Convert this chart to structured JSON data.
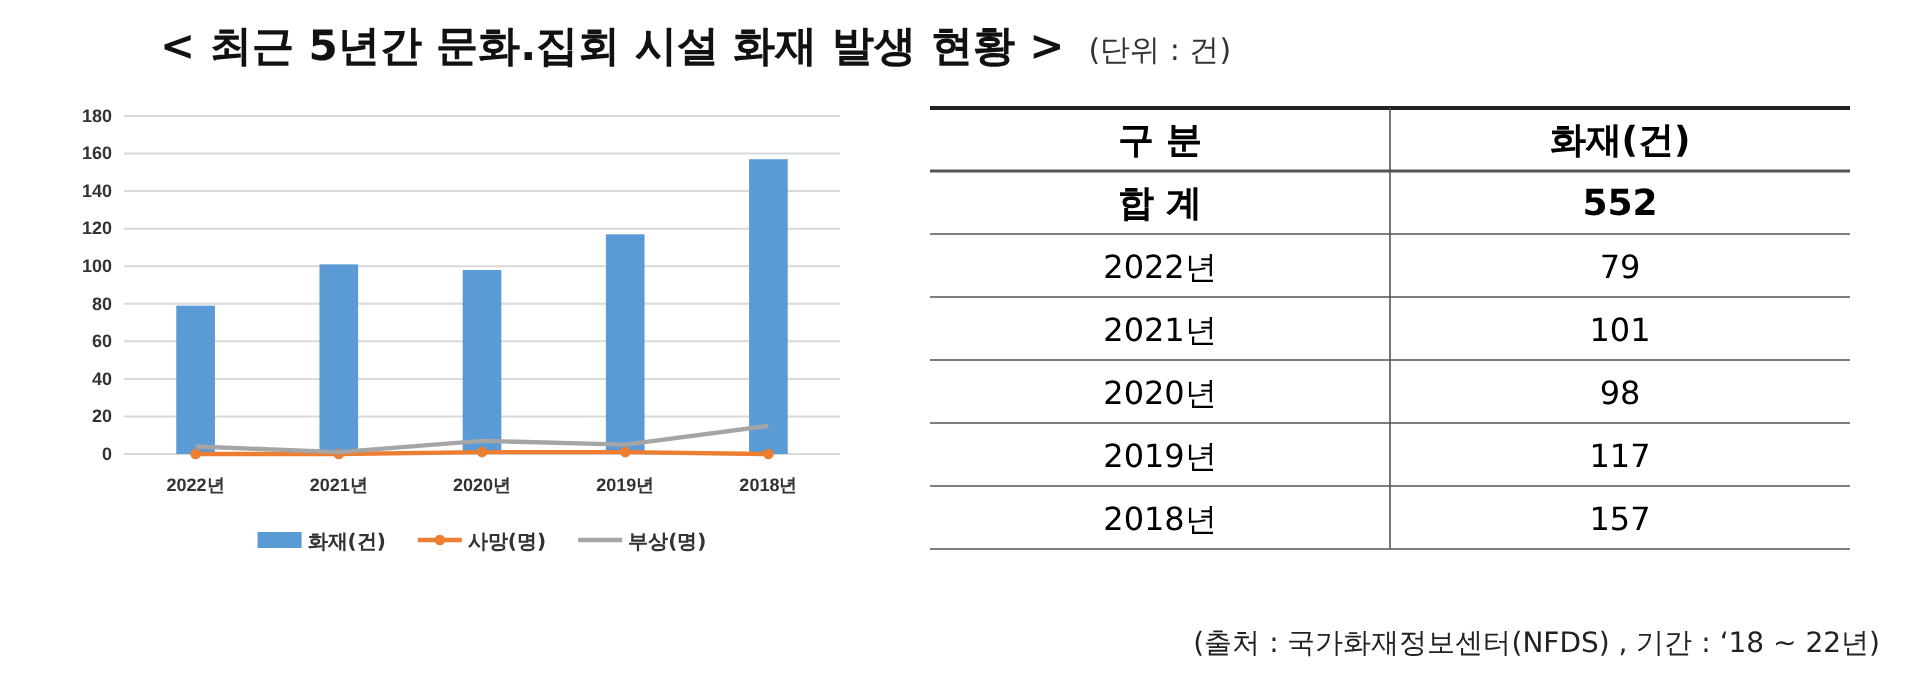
{
  "chart_data": {
    "type": "bar",
    "title": "< 최근 5년간 문화.집회 시설 화재 발생 현황 >",
    "categories": [
      "2022년",
      "2021년",
      "2020년",
      "2019년",
      "2018년"
    ],
    "series": [
      {
        "name": "화재(건)",
        "color": "#5b9bd5",
        "values": [
          79,
          101,
          98,
          117,
          157
        ]
      },
      {
        "name": "사망(명)",
        "type": "line",
        "color": "#ed7d31",
        "marker": "circle",
        "values": [
          0,
          0,
          1,
          1,
          0
        ]
      },
      {
        "name": "부상(명)",
        "type": "line",
        "color": "#a5a5a5",
        "marker": "none",
        "values": [
          4,
          1,
          7,
          5,
          15
        ]
      }
    ],
    "ylim": [
      0,
      180
    ],
    "yticks": [
      0,
      20,
      40,
      60,
      80,
      100,
      120,
      140,
      160,
      180
    ],
    "grid": "y",
    "legend": "bottom",
    "annotations": [
      "(단위 : 건)",
      "구 분",
      "화재(건)",
      "합 계",
      "552",
      "79",
      "101",
      "98",
      "117",
      "157",
      "(출처 : 국가화재정보센터(NFDS) , 기간 : ‘18 ~ 22년)"
    ]
  }
}
